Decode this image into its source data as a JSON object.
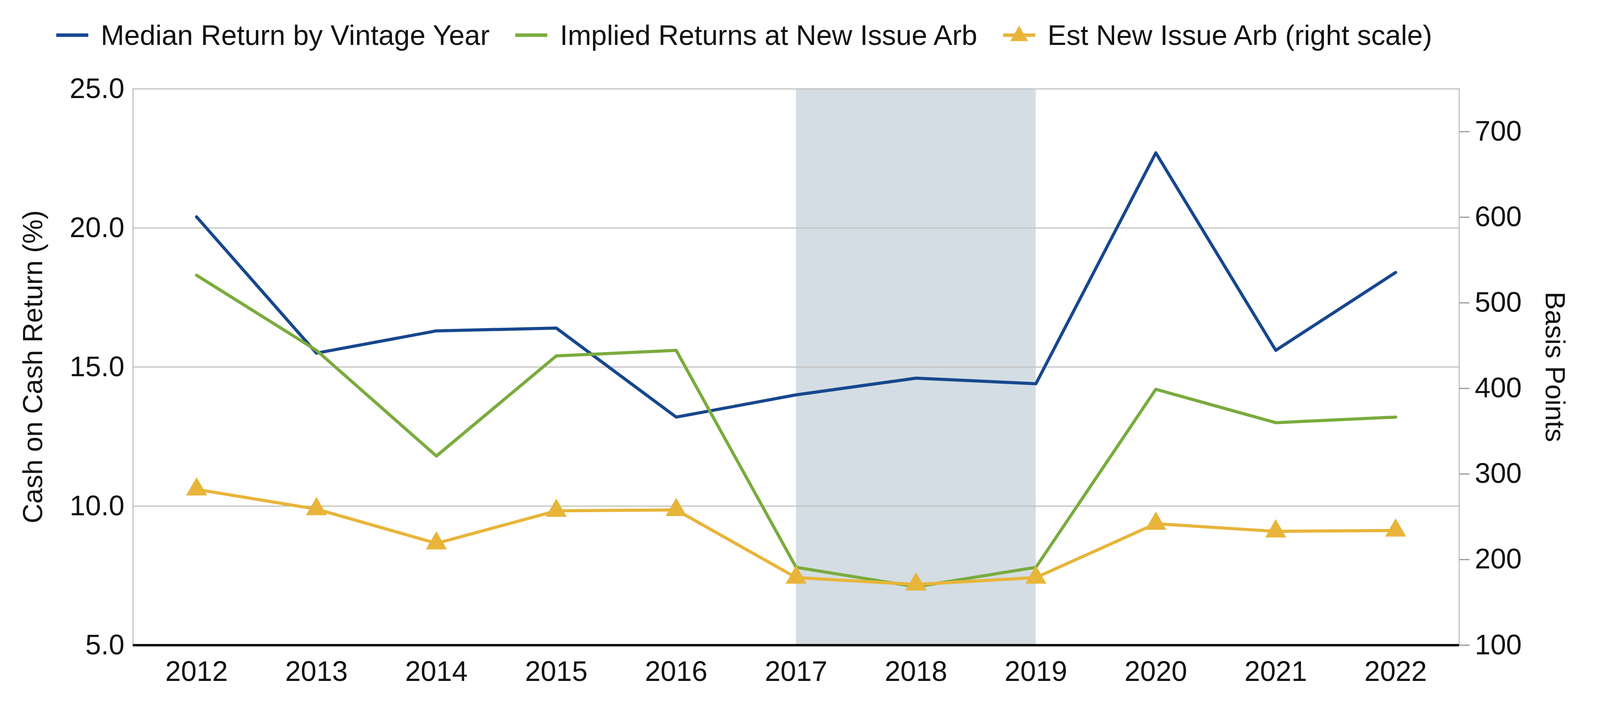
{
  "chart_data": {
    "type": "line",
    "categories": [
      "2012",
      "2013",
      "2014",
      "2015",
      "2016",
      "2017",
      "2018",
      "2019",
      "2020",
      "2021",
      "2022"
    ],
    "series": [
      {
        "name": "Median Return by Vintage Year",
        "color": "#17478e",
        "values": [
          20.4,
          15.5,
          16.3,
          16.4,
          13.2,
          14.0,
          14.6,
          14.4,
          22.7,
          15.6,
          18.4
        ]
      },
      {
        "name": "Implied Returns at New Issue Arb",
        "color": "#7aab3e",
        "values": [
          18.3,
          15.6,
          11.8,
          15.4,
          15.6,
          7.8,
          7.1,
          7.8,
          14.2,
          13.0,
          13.2
        ]
      },
      {
        "name": "Est New Issue Arb (right scale)",
        "color": "#e8b53a",
        "axis": "y2",
        "marker": "triangle",
        "values": [
          282,
          259,
          219,
          257,
          258,
          179,
          171,
          179,
          242,
          233,
          234
        ]
      }
    ],
    "ylabel": "Cash on Cash Return (%)",
    "y2label": "Basis Points",
    "ylim": [
      5,
      25
    ],
    "yticks": [
      {
        "value": 5,
        "label": "5.0"
      },
      {
        "value": 10,
        "label": "10.0"
      },
      {
        "value": 15,
        "label": "15.0"
      },
      {
        "value": 20,
        "label": "20.0"
      },
      {
        "value": 25,
        "label": "25.0"
      }
    ],
    "y2lim": [
      100,
      750
    ],
    "y2ticks": [
      100,
      200,
      300,
      400,
      500,
      600,
      700
    ],
    "grid": true,
    "legend": "top",
    "highlight": {
      "from": "2017",
      "to": "2019"
    }
  }
}
